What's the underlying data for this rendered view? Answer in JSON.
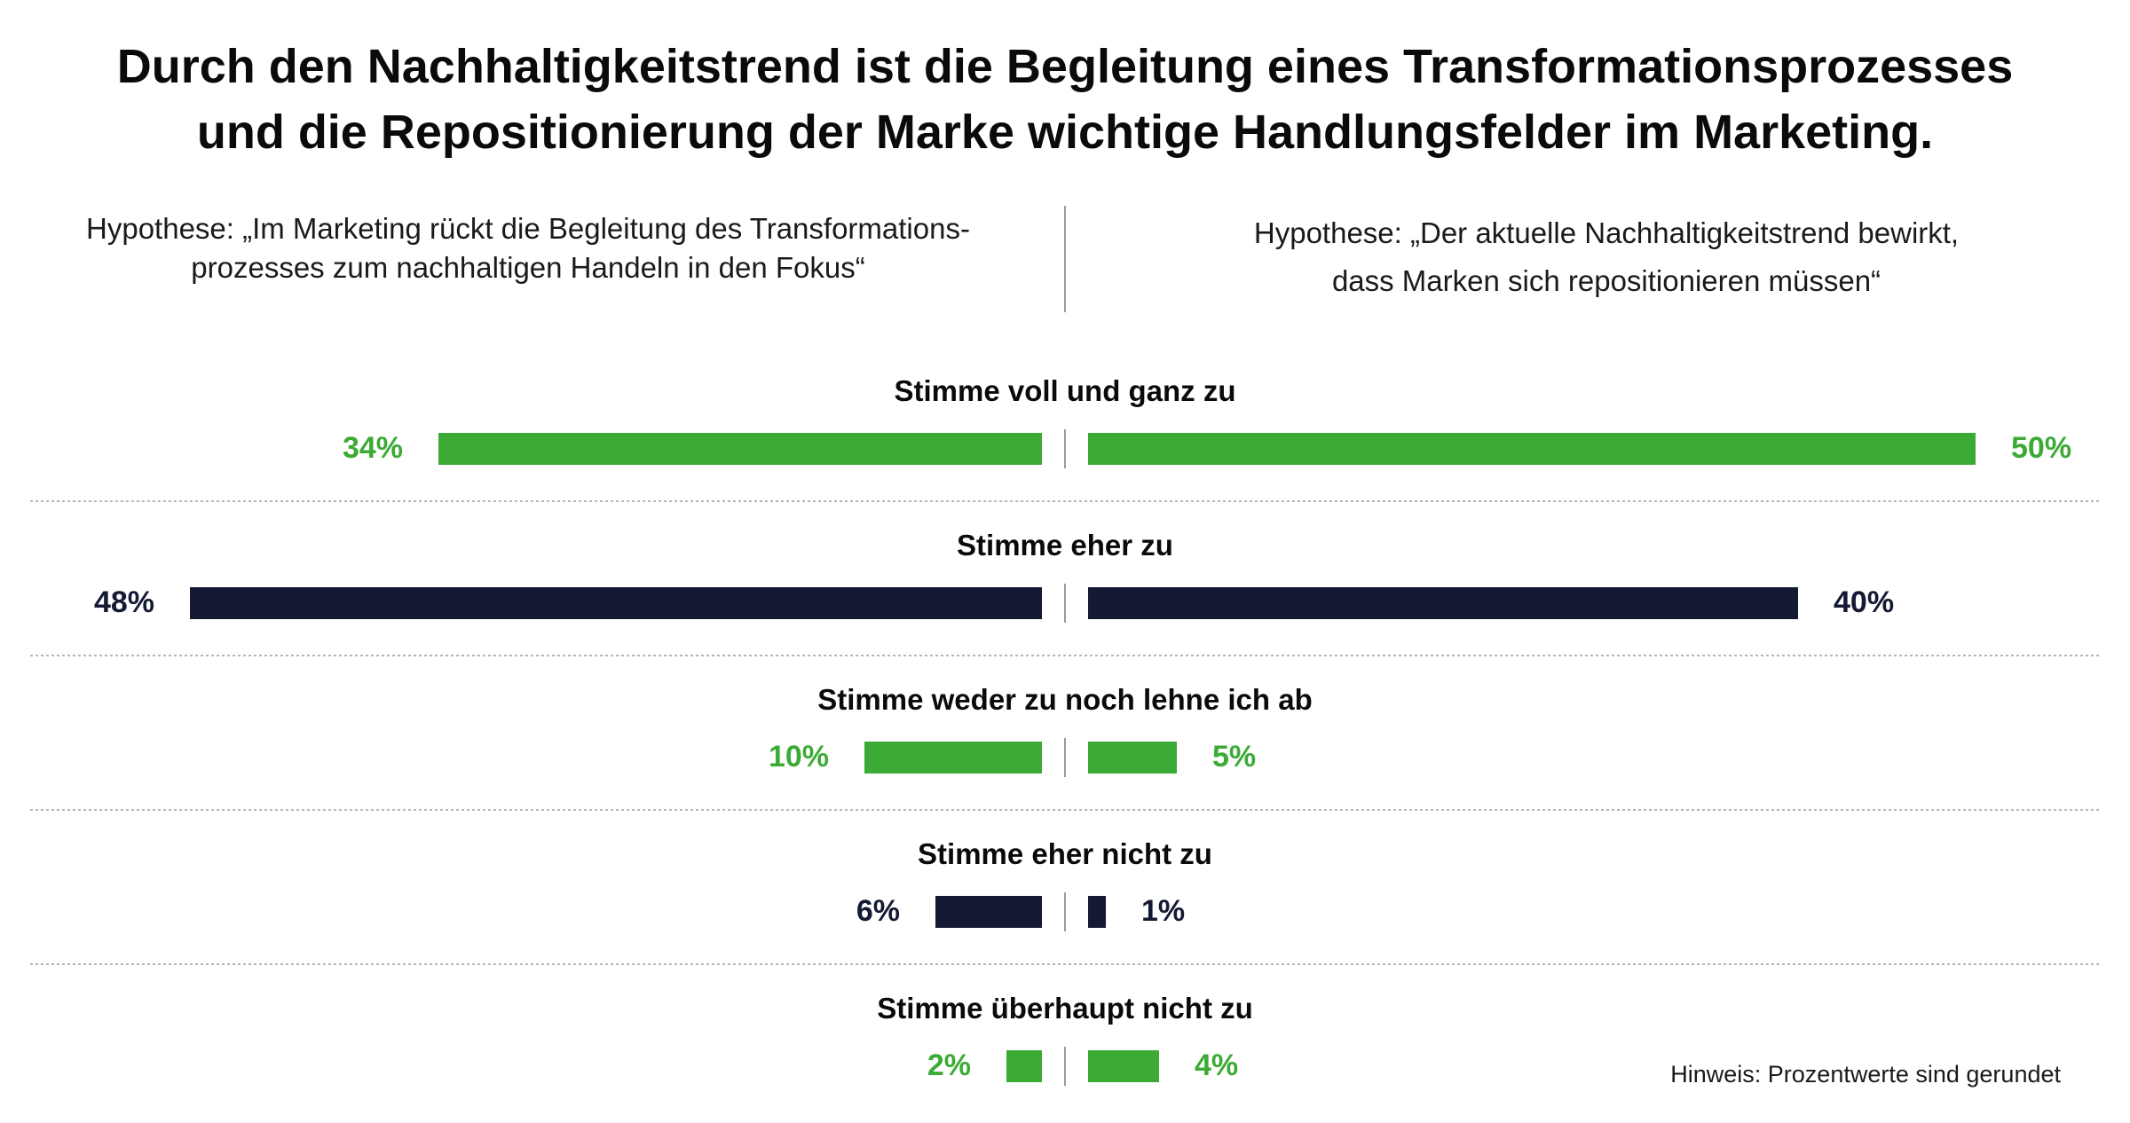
{
  "title_lines": [
    "Durch den Nachhaltigkeitstrend ist die Begleitung eines Transformationsprozesses",
    "und die Repositionierung der Marke wichtige Handlungsfelder im Marketing."
  ],
  "hypotheses": {
    "left_lines": [
      "Hypothese: „Im Marketing rückt die Begleitung des Transformations-",
      "prozesses zum nachhaltigen Handeln in den Fokus“"
    ],
    "right_lines": [
      "Hypothese: „Der aktuelle Nachhaltigkeitstrend bewirkt,",
      "dass Marken sich repositionieren müssen“"
    ]
  },
  "note": "Hinweis: Prozentwerte sind gerundet",
  "colors": {
    "green": "#3bab36",
    "navy": "#141a33",
    "divider": "#b5b5b5",
    "center_tick": "#9a9a9a"
  },
  "chart_data": {
    "type": "bar",
    "orientation": "horizontal-diverging",
    "unit": "%",
    "xlim": [
      0,
      50
    ],
    "categories": [
      "Stimme voll und ganz zu",
      "Stimme eher zu",
      "Stimme weder zu noch lehne ich ab",
      "Stimme eher nicht zu",
      "Stimme überhaupt nicht zu"
    ],
    "bar_colors": [
      "green",
      "navy",
      "green",
      "navy",
      "green"
    ],
    "series": [
      {
        "name": "Hypothese: Begleitung des Transformationsprozesses",
        "side": "left",
        "values": [
          34,
          48,
          10,
          6,
          2
        ],
        "labels": [
          "34%",
          "48%",
          "10%",
          "6%",
          "2%"
        ]
      },
      {
        "name": "Hypothese: Marken müssen sich repositionieren",
        "side": "right",
        "values": [
          50,
          40,
          5,
          1,
          4
        ],
        "labels": [
          "50%",
          "40%",
          "5%",
          "1%",
          "4%"
        ]
      }
    ]
  }
}
